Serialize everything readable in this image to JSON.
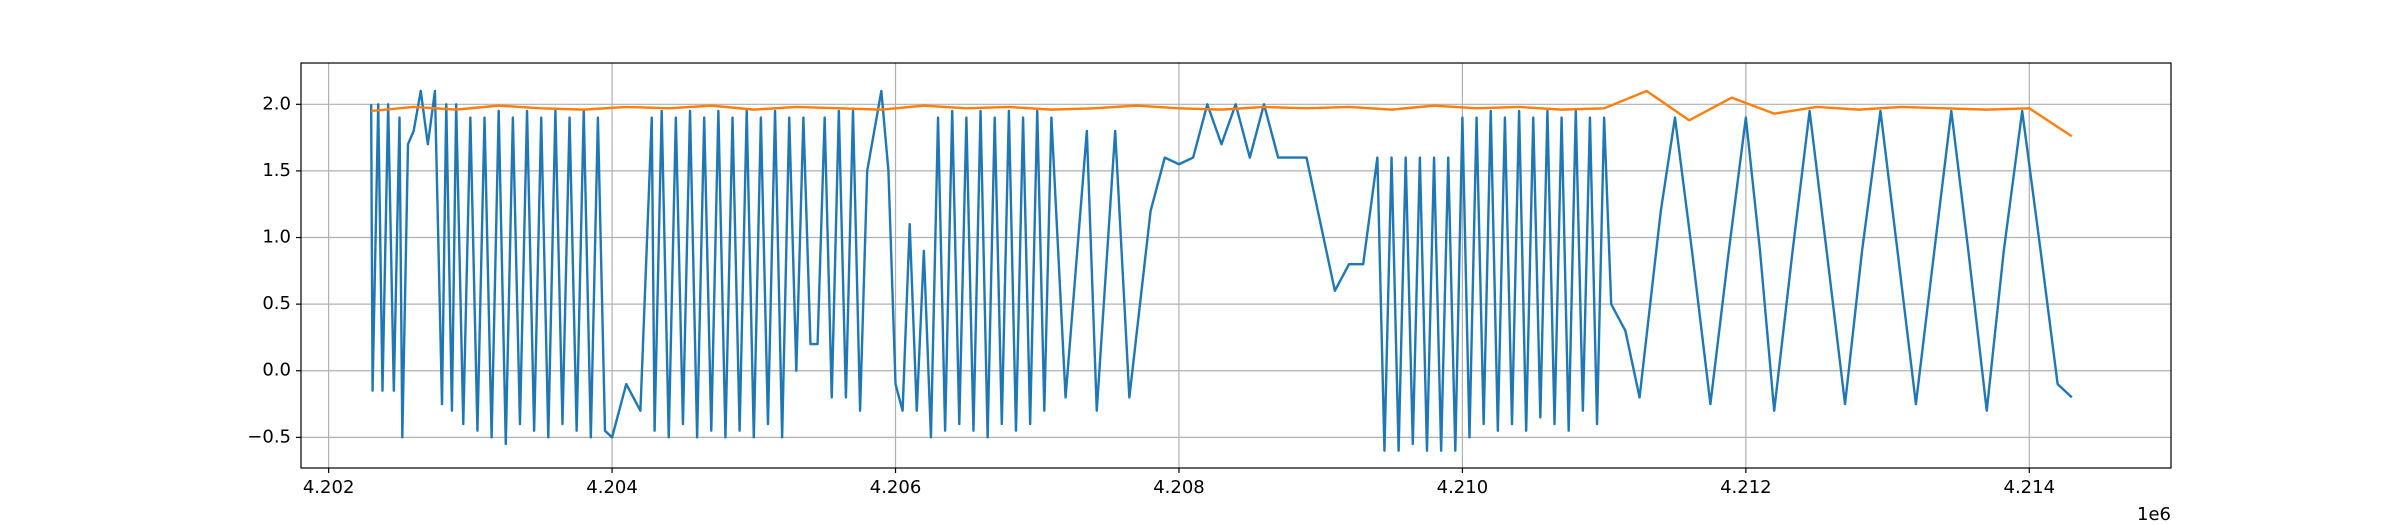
{
  "chart_data": {
    "type": "line",
    "series": [
      {
        "color": "#1f77b4",
        "x": [
          4202300,
          4202310,
          4202350,
          4202380,
          4202420,
          4202460,
          4202500,
          4202520,
          4202560,
          4202600,
          4202650,
          4202700,
          4202750,
          4202800,
          4202830,
          4202870,
          4202900,
          4202950,
          4203000,
          4203050,
          4203100,
          4203150,
          4203200,
          4203250,
          4203300,
          4203350,
          4203400,
          4203450,
          4203500,
          4203550,
          4203600,
          4203650,
          4203700,
          4203750,
          4203800,
          4203850,
          4203900,
          4203950,
          4204000,
          4204100,
          4204200,
          4204280,
          4204300,
          4204350,
          4204400,
          4204450,
          4204500,
          4204550,
          4204600,
          4204650,
          4204700,
          4204750,
          4204800,
          4204850,
          4204900,
          4204950,
          4205000,
          4205050,
          4205100,
          4205150,
          4205200,
          4205250,
          4205300,
          4205350,
          4205400,
          4205450,
          4205500,
          4205550,
          4205600,
          4205650,
          4205700,
          4205750,
          4205800,
          4205900,
          4205950,
          4206000,
          4206050,
          4206100,
          4206150,
          4206200,
          4206250,
          4206300,
          4206350,
          4206400,
          4206450,
          4206500,
          4206550,
          4206600,
          4206650,
          4206700,
          4206750,
          4206800,
          4206850,
          4206900,
          4206950,
          4207000,
          4207050,
          4207100,
          4207200,
          4207350,
          4207420,
          4207550,
          4207650,
          4207800,
          4207900,
          4208000,
          4208100,
          4208200,
          4208300,
          4208400,
          4208500,
          4208600,
          4208700,
          4208800,
          4208900,
          4209000,
          4209100,
          4209200,
          4209300,
          4209400,
          4209450,
          4209500,
          4209550,
          4209600,
          4209650,
          4209700,
          4209750,
          4209800,
          4209850,
          4209900,
          4209950,
          4210000,
          4210050,
          4210100,
          4210150,
          4210200,
          4210250,
          4210300,
          4210350,
          4210400,
          4210450,
          4210500,
          4210550,
          4210600,
          4210650,
          4210700,
          4210750,
          4210800,
          4210850,
          4210900,
          4210950,
          4211000,
          4211050,
          4211150,
          4211250,
          4211400,
          4211500,
          4211620,
          4211750,
          4211880,
          4212000,
          4212100,
          4212200,
          4212330,
          4212450,
          4212570,
          4212700,
          4212820,
          4212950,
          4213070,
          4213200,
          4213330,
          4213450,
          4213570,
          4213700,
          4213820,
          4213950,
          4214080,
          4214200,
          4214300
        ],
        "values": [
          2.0,
          -0.15,
          2.0,
          -0.15,
          2.0,
          -0.15,
          1.9,
          -0.5,
          1.7,
          1.8,
          2.1,
          1.7,
          2.1,
          -0.25,
          2.0,
          -0.3,
          2.0,
          -0.4,
          1.9,
          -0.45,
          1.9,
          -0.5,
          1.95,
          -0.55,
          1.9,
          -0.4,
          1.95,
          -0.45,
          1.9,
          -0.5,
          1.95,
          -0.4,
          1.9,
          -0.45,
          1.95,
          -0.5,
          1.9,
          -0.45,
          -0.5,
          -0.1,
          -0.3,
          1.9,
          -0.45,
          1.95,
          -0.5,
          1.9,
          -0.4,
          1.95,
          -0.5,
          1.9,
          -0.45,
          1.95,
          -0.5,
          1.9,
          -0.45,
          1.95,
          -0.5,
          1.9,
          -0.4,
          1.95,
          -0.5,
          1.9,
          0.0,
          1.9,
          0.2,
          0.2,
          1.9,
          -0.2,
          1.95,
          -0.2,
          1.95,
          -0.3,
          1.5,
          2.1,
          1.5,
          -0.1,
          -0.3,
          1.1,
          -0.3,
          0.9,
          -0.5,
          1.9,
          -0.45,
          1.95,
          -0.4,
          1.9,
          -0.45,
          1.95,
          -0.5,
          1.9,
          -0.4,
          1.95,
          -0.45,
          1.9,
          -0.4,
          1.95,
          -0.3,
          1.9,
          -0.2,
          1.8,
          -0.3,
          1.8,
          -0.2,
          1.2,
          1.6,
          1.55,
          1.6,
          2.0,
          1.7,
          2.0,
          1.6,
          2.0,
          1.6,
          1.6,
          1.6,
          1.1,
          0.6,
          0.8,
          0.8,
          1.6,
          -0.6,
          1.6,
          -0.6,
          1.6,
          -0.55,
          1.6,
          -0.6,
          1.6,
          -0.6,
          1.6,
          -0.6,
          1.9,
          -0.5,
          1.9,
          -0.4,
          1.95,
          -0.45,
          1.9,
          -0.4,
          1.95,
          -0.45,
          1.9,
          -0.35,
          1.95,
          -0.4,
          1.9,
          -0.45,
          1.95,
          -0.3,
          1.9,
          -0.4,
          1.9,
          0.5,
          0.3,
          -0.2,
          1.2,
          1.9,
          0.9,
          -0.25,
          0.9,
          1.9,
          0.9,
          -0.3,
          0.9,
          1.95,
          0.9,
          -0.25,
          0.9,
          1.95,
          0.9,
          -0.25,
          0.9,
          1.95,
          0.9,
          -0.3,
          0.9,
          1.95,
          0.9,
          -0.1,
          -0.2
        ]
      },
      {
        "color": "#ff7f0e",
        "x": [
          4202300,
          4202600,
          4202900,
          4203200,
          4203500,
          4203800,
          4204100,
          4204400,
          4204700,
          4205000,
          4205300,
          4205600,
          4205900,
          4206200,
          4206500,
          4206800,
          4207100,
          4207400,
          4207700,
          4208000,
          4208300,
          4208600,
          4208900,
          4209200,
          4209500,
          4209800,
          4210100,
          4210400,
          4210700,
          4211000,
          4211300,
          4211600,
          4211900,
          4212200,
          4212500,
          4212800,
          4213100,
          4213400,
          4213700,
          4214000,
          4214300
        ],
        "values": [
          1.95,
          1.98,
          1.96,
          1.99,
          1.97,
          1.96,
          1.98,
          1.97,
          1.99,
          1.96,
          1.98,
          1.97,
          1.96,
          1.99,
          1.97,
          1.98,
          1.96,
          1.97,
          1.99,
          1.97,
          1.96,
          1.98,
          1.97,
          1.98,
          1.96,
          1.99,
          1.97,
          1.98,
          1.96,
          1.97,
          2.1,
          1.88,
          2.05,
          1.93,
          1.98,
          1.96,
          1.98,
          1.97,
          1.96,
          1.97,
          1.76
        ]
      }
    ],
    "xlim": [
      4201805,
      4215000
    ],
    "ylim": [
      -0.73,
      2.31
    ],
    "xticks": [
      {
        "value": 4202000,
        "label": "4.202"
      },
      {
        "value": 4204000,
        "label": "4.204"
      },
      {
        "value": 4206000,
        "label": "4.206"
      },
      {
        "value": 4208000,
        "label": "4.208"
      },
      {
        "value": 4210000,
        "label": "4.210"
      },
      {
        "value": 4212000,
        "label": "4.212"
      },
      {
        "value": 4214000,
        "label": "4.214"
      }
    ],
    "yticks": [
      {
        "value": -0.5,
        "label": "−0.5"
      },
      {
        "value": 0.0,
        "label": "0.0"
      },
      {
        "value": 0.5,
        "label": "0.5"
      },
      {
        "value": 1.0,
        "label": "1.0"
      },
      {
        "value": 1.5,
        "label": "1.5"
      },
      {
        "value": 2.0,
        "label": "2.0"
      }
    ],
    "x_offset_label": "1e6",
    "grid": true
  }
}
